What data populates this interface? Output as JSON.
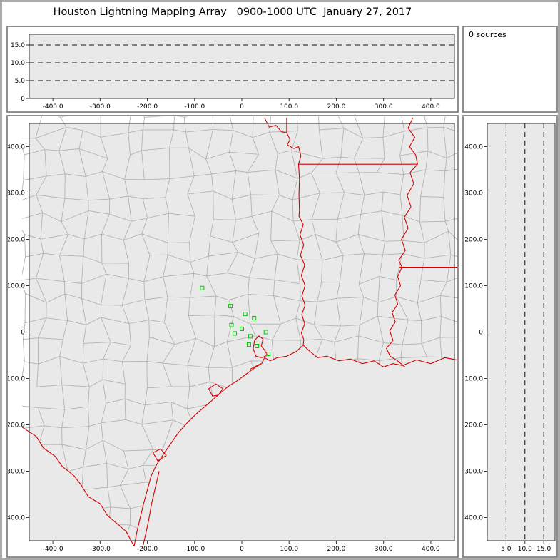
{
  "title": "Houston Lightning Mapping Array   0900-1000 UTC  January 27, 2017",
  "sources_label": "0 sources",
  "colors": {
    "plot_bg": "#e9e9e9",
    "frame_border": "#a9a9a9",
    "panel_border": "#8f8f8f",
    "axis": "#333333",
    "county_line": "#b3b3b3",
    "state_line": "#d40000",
    "station": "#00c800",
    "dashed_line": "#111111"
  },
  "chart_data": [
    {
      "id": "altitude_vs_eastwest",
      "type": "scatter",
      "points": [],
      "xlim": [
        -450,
        450
      ],
      "ylim": [
        0,
        18
      ],
      "xticks": {
        "values": [
          -400,
          -300,
          -200,
          -100,
          0,
          100,
          200,
          300,
          400
        ],
        "labels": [
          "-400.0",
          "-300.0",
          "-200.0",
          "-100.0",
          "0",
          "100.0",
          "200.0",
          "300.0",
          "400.0"
        ]
      },
      "yticks": {
        "values": [
          0,
          5,
          10,
          15
        ],
        "labels": [
          "0",
          "5.0",
          "10.0",
          "15.0"
        ]
      },
      "dashed_y": [
        5,
        10,
        15
      ]
    },
    {
      "id": "plan_view_map",
      "type": "scatter",
      "points": [],
      "xlim": [
        -450,
        450
      ],
      "ylim": [
        -450,
        450
      ],
      "xticks": {
        "values": [
          -400,
          -300,
          -200,
          -100,
          0,
          100,
          200,
          300,
          400
        ],
        "labels": [
          "-400.0",
          "-300.0",
          "-200.0",
          "-100.0",
          "0",
          "100.0",
          "200.0",
          "300.0",
          "400.0"
        ]
      },
      "yticks": {
        "values": [
          400,
          300,
          200,
          100,
          0,
          -100,
          -200,
          -300,
          -400
        ],
        "labels": [
          "400.0",
          "300.0",
          "200.0",
          "100.0",
          "0",
          "-100.0",
          "-200.0",
          "-300.0",
          "-400.0"
        ]
      }
    },
    {
      "id": "altitude_vs_northsouth",
      "type": "scatter",
      "points": [],
      "xlim": [
        0,
        18
      ],
      "ylim": [
        -450,
        450
      ],
      "xticks": {
        "values": [
          5,
          10,
          15
        ],
        "labels": [
          "5.0",
          "10.0",
          "15.0"
        ]
      },
      "yticks": {
        "values": [
          400,
          300,
          200,
          100,
          0,
          -100,
          -200,
          -300,
          -400
        ],
        "labels": [
          "400.0",
          "300.0",
          "200.0",
          "100.0",
          "0",
          "-100.0",
          "-200.0",
          "-300.0",
          "-400.0"
        ]
      },
      "dashed_x": [
        5,
        10,
        15
      ]
    }
  ],
  "map": {
    "stations_km": [
      [
        -84,
        95
      ],
      [
        -24,
        56
      ],
      [
        7,
        39
      ],
      [
        26,
        30
      ],
      [
        -22,
        15
      ],
      [
        0,
        7
      ],
      [
        -15,
        -3
      ],
      [
        18,
        -9
      ],
      [
        51,
        0
      ],
      [
        15,
        -27
      ],
      [
        32,
        -30
      ],
      [
        56,
        -47
      ]
    ],
    "county_grid": {
      "spacing": 45,
      "jitter": 13,
      "seed": 20170127
    },
    "land_clip": [
      [
        -465,
        465
      ],
      [
        465,
        465
      ],
      [
        465,
        -60
      ],
      [
        430,
        -55
      ],
      [
        400,
        -68
      ],
      [
        370,
        -60
      ],
      [
        340,
        -72
      ],
      [
        320,
        -68
      ],
      [
        300,
        -75
      ],
      [
        280,
        -62
      ],
      [
        255,
        -68
      ],
      [
        230,
        -58
      ],
      [
        205,
        -62
      ],
      [
        180,
        -52
      ],
      [
        160,
        -55
      ],
      [
        140,
        -38
      ],
      [
        130,
        -28
      ],
      [
        115,
        -42
      ],
      [
        95,
        -52
      ],
      [
        75,
        -55
      ],
      [
        60,
        -62
      ],
      [
        48,
        -55
      ],
      [
        42,
        -68
      ],
      [
        30,
        -75
      ],
      [
        10,
        -90
      ],
      [
        -10,
        -105
      ],
      [
        -30,
        -118
      ],
      [
        -55,
        -140
      ],
      [
        -75,
        -158
      ],
      [
        -95,
        -175
      ],
      [
        -115,
        -195
      ],
      [
        -135,
        -218
      ],
      [
        -150,
        -240
      ],
      [
        -165,
        -262
      ],
      [
        -180,
        -285
      ],
      [
        -192,
        -310
      ],
      [
        -200,
        -340
      ],
      [
        -208,
        -370
      ],
      [
        -215,
        -400
      ],
      [
        -222,
        -430
      ],
      [
        -228,
        -462
      ],
      [
        -245,
        -430
      ],
      [
        -262,
        -415
      ],
      [
        -285,
        -395
      ],
      [
        -300,
        -370
      ],
      [
        -325,
        -355
      ],
      [
        -340,
        -330
      ],
      [
        -355,
        -310
      ],
      [
        -380,
        -290
      ],
      [
        -395,
        -268
      ],
      [
        -420,
        -250
      ],
      [
        -435,
        -225
      ],
      [
        -465,
        -205
      ]
    ],
    "red_features": [
      {
        "name": "coastline",
        "closed": false,
        "pts": [
          [
            465,
            -62
          ],
          [
            430,
            -55
          ],
          [
            400,
            -68
          ],
          [
            370,
            -60
          ],
          [
            340,
            -72
          ],
          [
            320,
            -68
          ],
          [
            300,
            -75
          ],
          [
            280,
            -62
          ],
          [
            255,
            -68
          ],
          [
            230,
            -58
          ],
          [
            205,
            -62
          ],
          [
            180,
            -52
          ],
          [
            160,
            -55
          ],
          [
            140,
            -38
          ],
          [
            130,
            -28
          ],
          [
            115,
            -42
          ],
          [
            95,
            -52
          ],
          [
            75,
            -55
          ],
          [
            60,
            -62
          ],
          [
            48,
            -55
          ],
          [
            42,
            -68
          ],
          [
            30,
            -75
          ],
          [
            10,
            -90
          ],
          [
            -10,
            -105
          ],
          [
            -30,
            -118
          ],
          [
            -55,
            -140
          ],
          [
            -75,
            -158
          ],
          [
            -95,
            -175
          ],
          [
            -115,
            -195
          ],
          [
            -135,
            -218
          ],
          [
            -150,
            -240
          ],
          [
            -165,
            -262
          ],
          [
            -180,
            -285
          ],
          [
            -192,
            -310
          ],
          [
            -200,
            -340
          ],
          [
            -208,
            -370
          ],
          [
            -215,
            -400
          ],
          [
            -222,
            -430
          ],
          [
            -228,
            -462
          ]
        ]
      },
      {
        "name": "rio-grande",
        "closed": false,
        "pts": [
          [
            -228,
            -462
          ],
          [
            -245,
            -430
          ],
          [
            -262,
            -415
          ],
          [
            -285,
            -395
          ],
          [
            -300,
            -370
          ],
          [
            -325,
            -355
          ],
          [
            -340,
            -330
          ],
          [
            -355,
            -310
          ],
          [
            -380,
            -290
          ],
          [
            -395,
            -268
          ],
          [
            -420,
            -250
          ],
          [
            -435,
            -225
          ],
          [
            -465,
            -205
          ]
        ]
      },
      {
        "name": "red-river",
        "closed": false,
        "pts": [
          [
            48,
            462
          ],
          [
            58,
            442
          ],
          [
            72,
            446
          ],
          [
            84,
            432
          ],
          [
            95,
            430
          ],
          [
            102,
            415
          ],
          [
            96,
            404
          ],
          [
            110,
            396
          ],
          [
            120,
            400
          ],
          [
            125,
            380
          ],
          [
            120,
            362
          ]
        ]
      },
      {
        "name": "ok-ar-border",
        "closed": false,
        "pts": [
          [
            95,
            462
          ],
          [
            95,
            430
          ]
        ]
      },
      {
        "name": "ar-la-border-33n",
        "closed": false,
        "pts": [
          [
            120,
            362
          ],
          [
            372,
            362
          ]
        ]
      },
      {
        "name": "tx-la-border-sabine",
        "closed": false,
        "pts": [
          [
            120,
            362
          ],
          [
            122,
            330
          ],
          [
            121,
            296
          ],
          [
            122,
            262
          ],
          [
            121,
            250
          ],
          [
            130,
            232
          ],
          [
            123,
            210
          ],
          [
            131,
            188
          ],
          [
            124,
            166
          ],
          [
            133,
            145
          ],
          [
            126,
            122
          ],
          [
            134,
            100
          ],
          [
            127,
            78
          ],
          [
            134,
            58
          ],
          [
            127,
            38
          ],
          [
            133,
            18
          ],
          [
            126,
            -2
          ],
          [
            131,
            -16
          ],
          [
            130,
            -28
          ]
        ]
      },
      {
        "name": "mississippi-river",
        "closed": false,
        "pts": [
          [
            362,
            462
          ],
          [
            352,
            440
          ],
          [
            366,
            420
          ],
          [
            355,
            400
          ],
          [
            368,
            382
          ],
          [
            372,
            362
          ],
          [
            356,
            344
          ],
          [
            364,
            320
          ],
          [
            350,
            295
          ],
          [
            358,
            270
          ],
          [
            344,
            248
          ],
          [
            352,
            224
          ],
          [
            338,
            200
          ],
          [
            346,
            176
          ],
          [
            332,
            155
          ],
          [
            339,
            140
          ],
          [
            330,
            120
          ],
          [
            336,
            100
          ],
          [
            324,
            80
          ],
          [
            330,
            60
          ],
          [
            318,
            42
          ],
          [
            325,
            22
          ],
          [
            313,
            3
          ],
          [
            320,
            -18
          ],
          [
            306,
            -35
          ],
          [
            314,
            -52
          ],
          [
            330,
            -62
          ],
          [
            345,
            -75
          ]
        ]
      },
      {
        "name": "la-ms-border-31n",
        "closed": false,
        "pts": [
          [
            334,
            140
          ],
          [
            465,
            140
          ]
        ]
      },
      {
        "name": "galveston-bay",
        "closed": true,
        "pts": [
          [
            30,
            -52
          ],
          [
            24,
            -36
          ],
          [
            27,
            -18
          ],
          [
            36,
            -8
          ],
          [
            45,
            -15
          ],
          [
            41,
            -30
          ],
          [
            49,
            -40
          ],
          [
            54,
            -50
          ],
          [
            42,
            -55
          ]
        ]
      },
      {
        "name": "matagorda-bay",
        "closed": true,
        "pts": [
          [
            -62,
            -138
          ],
          [
            -70,
            -122
          ],
          [
            -55,
            -112
          ],
          [
            -40,
            -122
          ],
          [
            -50,
            -136
          ]
        ]
      },
      {
        "name": "corpus-christi-bay",
        "closed": true,
        "pts": [
          [
            -178,
            -278
          ],
          [
            -188,
            -260
          ],
          [
            -172,
            -252
          ],
          [
            -160,
            -266
          ]
        ]
      },
      {
        "name": "padre-island",
        "closed": false,
        "pts": [
          [
            -175,
            -300
          ],
          [
            -183,
            -335
          ],
          [
            -191,
            -370
          ],
          [
            -197,
            -405
          ],
          [
            -204,
            -438
          ],
          [
            -209,
            -460
          ]
        ]
      },
      {
        "name": "galveston-island",
        "closed": false,
        "pts": [
          [
            18,
            -80
          ],
          [
            40,
            -68
          ]
        ]
      }
    ]
  }
}
